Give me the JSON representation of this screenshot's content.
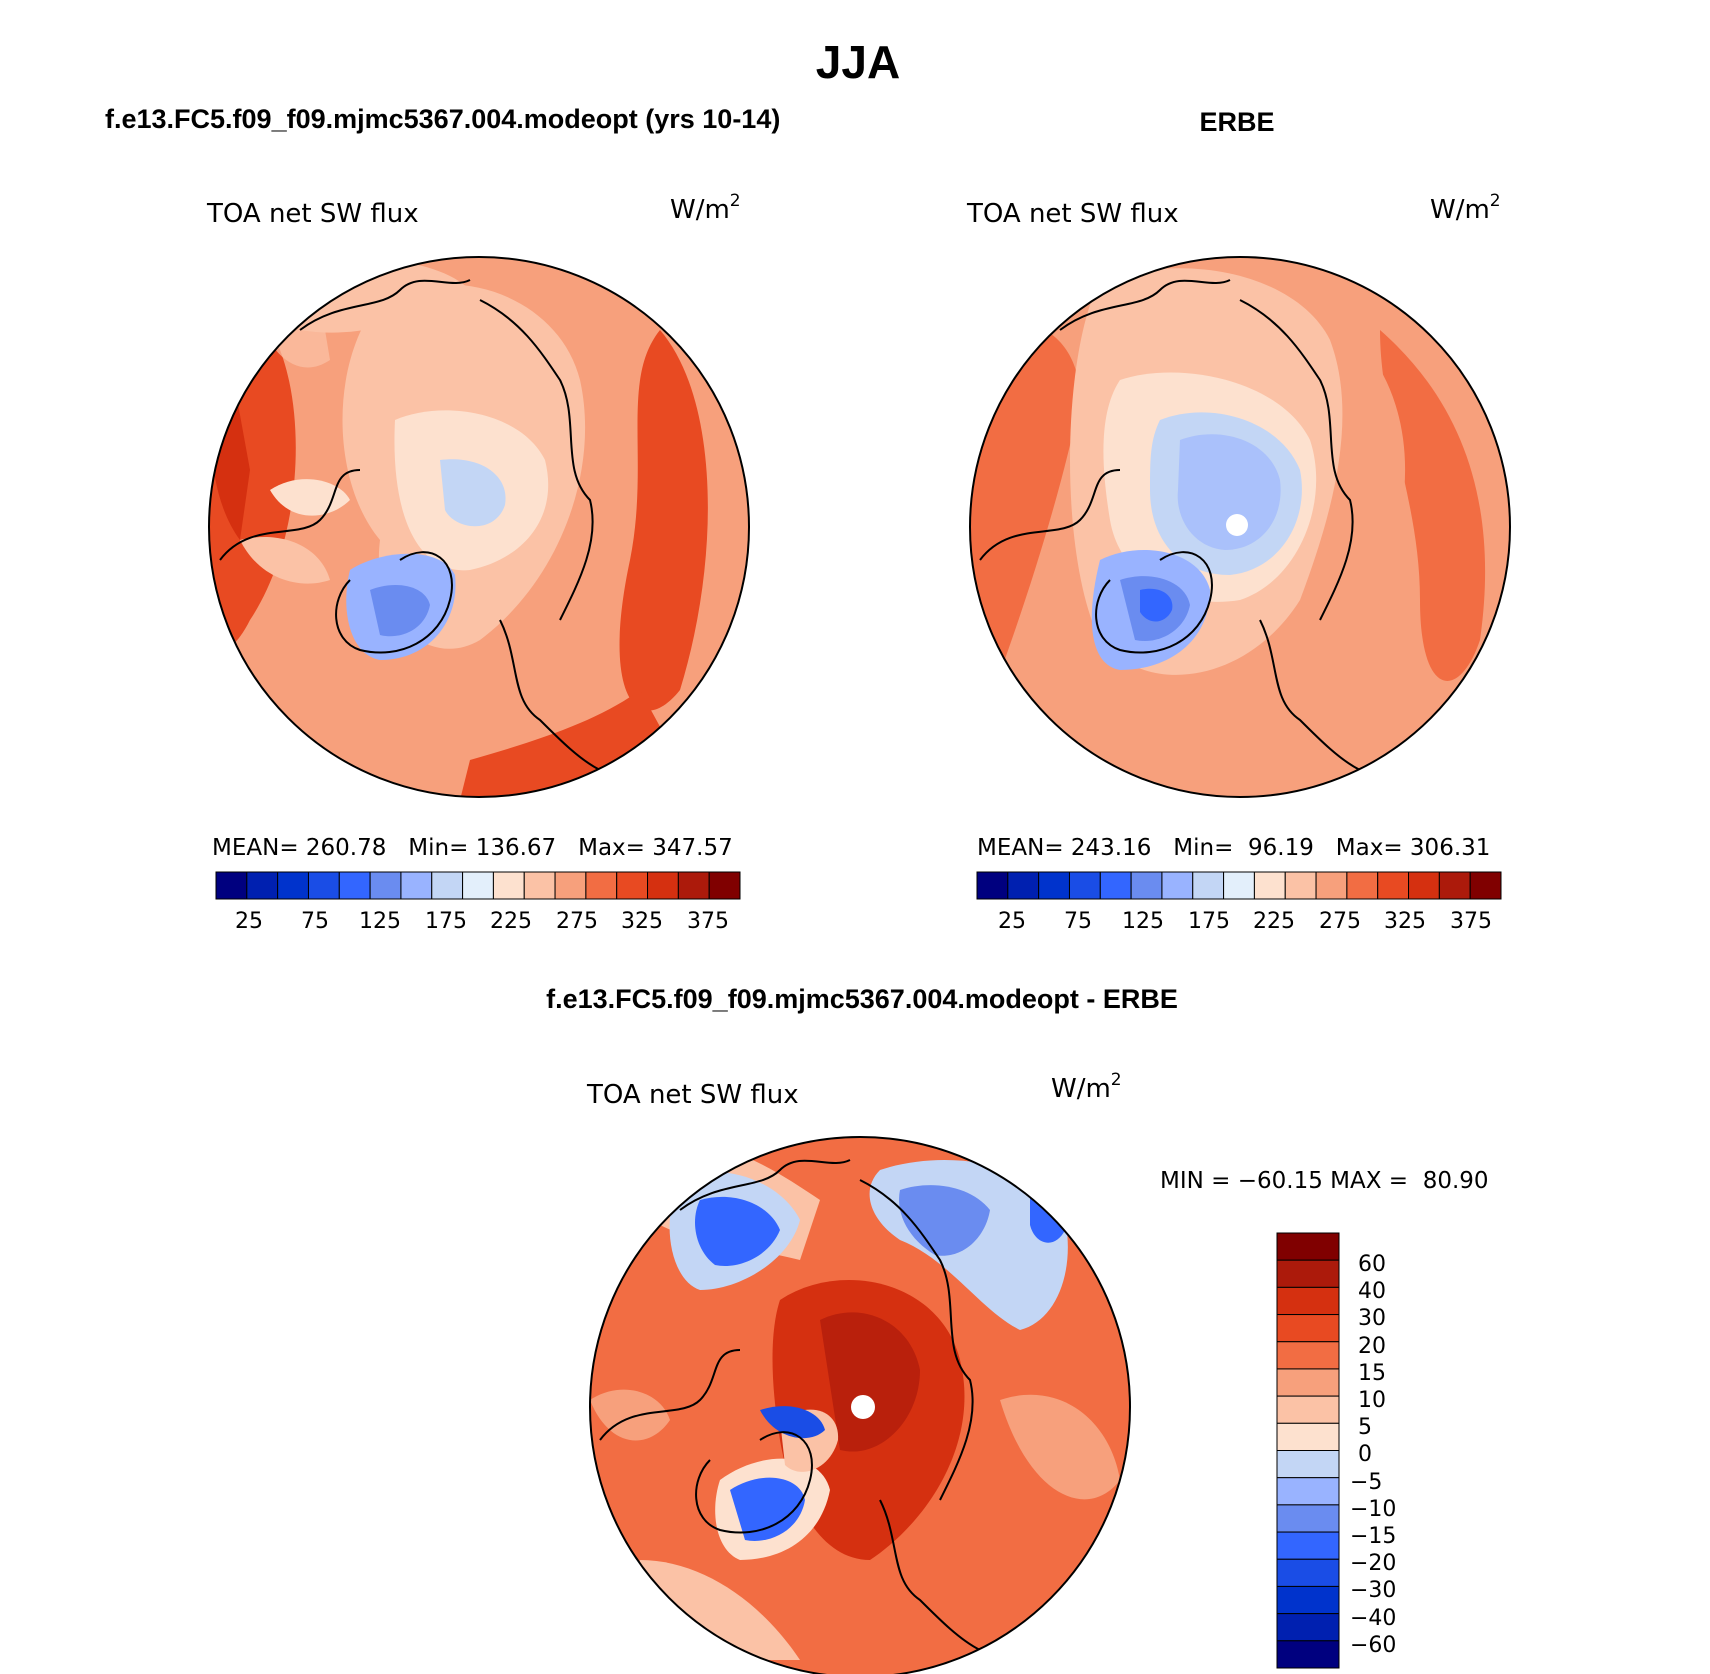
{
  "figure": {
    "title": "JJA",
    "units_label": "W/m",
    "units_superscript": "2",
    "variable_title": "TOA net SW flux"
  },
  "panels": [
    {
      "header": "f.e13.FC5.f09_f09.mjmc5367.004.modeopt (yrs 10-14)",
      "stats": "MEAN= 260.78   Min= 136.67   Max= 347.57",
      "colorbar_ticks": [
        "25",
        "75",
        "125",
        "175",
        "225",
        "275",
        "325",
        "375"
      ]
    },
    {
      "header": "ERBE",
      "stats": "MEAN= 243.16   Min=  96.19   Max= 306.31",
      "colorbar_ticks": [
        "25",
        "75",
        "125",
        "175",
        "225",
        "275",
        "325",
        "375"
      ]
    },
    {
      "header": "f.e13.FC5.f09_f09.mjmc5367.004.modeopt - ERBE",
      "stats": "MIN = −60.15 MAX =  80.90",
      "colorbar_ticks": [
        "60",
        "40",
        "30",
        "20",
        "15",
        "10",
        "5",
        "0",
        "−5",
        "−10",
        "−15",
        "−20",
        "−30",
        "−40",
        "−60"
      ]
    }
  ],
  "chart_data": [
    {
      "type": "heatmap",
      "projection": "north-polar-stereographic",
      "title": "TOA net SW flux",
      "dataset": "f.e13.FC5.f09_f09.mjmc5367.004.modeopt (yrs 10-14)",
      "units": "W/m2",
      "mean": 260.78,
      "min": 136.67,
      "max": 347.57,
      "levels": [
        25,
        50,
        75,
        100,
        125,
        150,
        175,
        200,
        225,
        250,
        275,
        300,
        325,
        350,
        375
      ],
      "colors": [
        "#00007f",
        "#0020b0",
        "#0033cc",
        "#1a4de6",
        "#3366ff",
        "#6a8cf0",
        "#99b3ff",
        "#c3d6f5",
        "#e3effb",
        "#fde1cf",
        "#fbc2a6",
        "#f7a07c",
        "#f26d43",
        "#e84a22",
        "#d53010",
        "#ac1a0b",
        "#800000"
      ]
    },
    {
      "type": "heatmap",
      "projection": "north-polar-stereographic",
      "title": "TOA net SW flux",
      "dataset": "ERBE",
      "units": "W/m2",
      "mean": 243.16,
      "min": 96.19,
      "max": 306.31,
      "levels": [
        25,
        50,
        75,
        100,
        125,
        150,
        175,
        200,
        225,
        250,
        275,
        300,
        325,
        350,
        375
      ]
    },
    {
      "type": "heatmap",
      "projection": "north-polar-stereographic",
      "title": "TOA net SW flux",
      "dataset": "f.e13.FC5.f09_f09.mjmc5367.004.modeopt - ERBE",
      "units": "W/m2",
      "min": -60.15,
      "max": 80.9,
      "levels": [
        -60,
        -40,
        -30,
        -20,
        -15,
        -10,
        -5,
        0,
        5,
        10,
        15,
        20,
        30,
        40,
        60
      ],
      "colors": [
        "#00007f",
        "#0020b0",
        "#0033cc",
        "#1a4de6",
        "#3366ff",
        "#6a8cf0",
        "#99b3ff",
        "#c3d6f5",
        "#fde1cf",
        "#fbc2a6",
        "#f7a07c",
        "#f26d43",
        "#e84a22",
        "#d53010",
        "#ac1a0b",
        "#800000"
      ]
    }
  ]
}
